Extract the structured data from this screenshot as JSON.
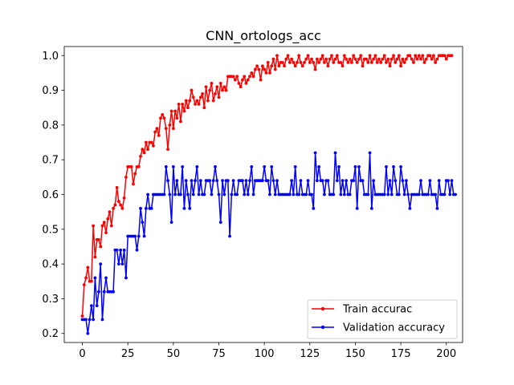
{
  "chart_data": {
    "type": "line",
    "title": "CNN_ortologs_acc",
    "xlabel": "",
    "ylabel": "",
    "xlim": [
      -9.95,
      208.95
    ],
    "ylim": [
      0.174,
      1.026
    ],
    "x_ticks": [
      0,
      25,
      50,
      75,
      100,
      125,
      150,
      175,
      200
    ],
    "y_ticks": [
      0.2,
      0.3,
      0.4,
      0.5,
      0.6,
      0.7,
      0.8,
      0.9,
      1.0
    ],
    "x_tick_labels": [
      "0",
      "25",
      "50",
      "75",
      "100",
      "125",
      "150",
      "175",
      "200"
    ],
    "y_tick_labels": [
      "0.2",
      "0.3",
      "0.4",
      "0.5",
      "0.6",
      "0.7",
      "0.8",
      "0.9",
      "1.0"
    ],
    "grid": false,
    "legend_position": "lower-right",
    "series": [
      {
        "name": "Train accurac",
        "color": "#ff0000",
        "marker": "dot",
        "values": [
          0.25,
          0.34,
          0.36,
          0.39,
          0.35,
          0.35,
          0.51,
          0.42,
          0.47,
          0.47,
          0.45,
          0.51,
          0.52,
          0.49,
          0.53,
          0.55,
          0.51,
          0.56,
          0.57,
          0.62,
          0.58,
          0.57,
          0.56,
          0.59,
          0.65,
          0.68,
          0.68,
          0.68,
          0.63,
          0.66,
          0.68,
          0.68,
          0.71,
          0.73,
          0.72,
          0.75,
          0.73,
          0.75,
          0.75,
          0.74,
          0.78,
          0.79,
          0.77,
          0.82,
          0.83,
          0.82,
          0.79,
          0.73,
          0.8,
          0.84,
          0.79,
          0.84,
          0.82,
          0.86,
          0.81,
          0.86,
          0.84,
          0.87,
          0.85,
          0.87,
          0.9,
          0.88,
          0.86,
          0.87,
          0.86,
          0.88,
          0.89,
          0.85,
          0.91,
          0.87,
          0.9,
          0.92,
          0.87,
          0.89,
          0.91,
          0.88,
          0.92,
          0.9,
          0.91,
          0.9,
          0.94,
          0.94,
          0.94,
          0.94,
          0.93,
          0.94,
          0.92,
          0.91,
          0.93,
          0.94,
          0.92,
          0.93,
          0.94,
          0.95,
          0.94,
          0.96,
          0.97,
          0.96,
          0.93,
          0.97,
          0.96,
          0.95,
          0.98,
          0.95,
          0.97,
          0.99,
          0.96,
          1.0,
          0.97,
          0.98,
          0.98,
          0.97,
          0.99,
          1.0,
          0.98,
          0.99,
          0.98,
          0.97,
          0.98,
          1.0,
          0.98,
          0.97,
          0.98,
          0.99,
          1.0,
          0.98,
          0.99,
          0.98,
          0.96,
          0.99,
          0.98,
          0.99,
          1.0,
          0.98,
          0.99,
          0.97,
          0.99,
          1.0,
          0.98,
          0.99,
          1.0,
          0.98,
          0.98,
          0.97,
          1.0,
          0.99,
          0.98,
          0.99,
          0.98,
          1.0,
          0.99,
          0.98,
          0.99,
          1.0,
          0.97,
          0.99,
          0.99,
          0.98,
          1.0,
          0.98,
          0.99,
          1.0,
          0.98,
          0.99,
          0.98,
          0.99,
          1.0,
          0.98,
          0.99,
          0.97,
          0.99,
          1.0,
          0.98,
          0.99,
          1.0,
          0.97,
          0.99,
          0.98,
          0.99,
          1.0,
          1.0,
          0.99,
          0.98,
          1.0,
          0.99,
          1.0,
          0.99,
          1.0,
          0.98,
          0.99,
          1.0,
          1.0,
          0.99,
          1.0,
          0.98,
          0.99,
          1.0,
          1.0,
          1.0,
          1.0,
          0.99,
          1.0,
          1.0,
          1.0
        ]
      },
      {
        "name": "Validation accuracy",
        "color": "#0000ff",
        "marker": "dot",
        "values": [
          0.24,
          0.24,
          0.24,
          0.2,
          0.24,
          0.28,
          0.24,
          0.36,
          0.28,
          0.32,
          0.4,
          0.24,
          0.32,
          0.36,
          0.32,
          0.32,
          0.32,
          0.32,
          0.44,
          0.44,
          0.4,
          0.44,
          0.4,
          0.44,
          0.36,
          0.48,
          0.48,
          0.48,
          0.48,
          0.48,
          0.44,
          0.48,
          0.56,
          0.52,
          0.48,
          0.56,
          0.6,
          0.56,
          0.56,
          0.6,
          0.6,
          0.6,
          0.6,
          0.6,
          0.6,
          0.6,
          0.68,
          0.64,
          0.6,
          0.52,
          0.68,
          0.6,
          0.64,
          0.6,
          0.6,
          0.68,
          0.56,
          0.64,
          0.6,
          0.56,
          0.64,
          0.6,
          0.64,
          0.68,
          0.6,
          0.64,
          0.6,
          0.6,
          0.64,
          0.64,
          0.64,
          0.6,
          0.64,
          0.68,
          0.64,
          0.6,
          0.52,
          0.64,
          0.6,
          0.64,
          0.64,
          0.48,
          0.6,
          0.64,
          0.6,
          0.6,
          0.64,
          0.64,
          0.64,
          0.6,
          0.64,
          0.6,
          0.64,
          0.68,
          0.6,
          0.64,
          0.64,
          0.64,
          0.64,
          0.64,
          0.68,
          0.64,
          0.64,
          0.6,
          0.68,
          0.64,
          0.6,
          0.64,
          0.6,
          0.6,
          0.6,
          0.6,
          0.6,
          0.6,
          0.6,
          0.64,
          0.6,
          0.68,
          0.6,
          0.6,
          0.64,
          0.6,
          0.6,
          0.6,
          0.64,
          0.6,
          0.6,
          0.56,
          0.72,
          0.64,
          0.68,
          0.64,
          0.64,
          0.6,
          0.64,
          0.64,
          0.6,
          0.6,
          0.6,
          0.72,
          0.64,
          0.68,
          0.6,
          0.64,
          0.6,
          0.64,
          0.6,
          0.6,
          0.64,
          0.64,
          0.68,
          0.56,
          0.68,
          0.64,
          0.64,
          0.6,
          0.6,
          0.6,
          0.72,
          0.56,
          0.64,
          0.6,
          0.6,
          0.6,
          0.6,
          0.6,
          0.6,
          0.68,
          0.6,
          0.64,
          0.6,
          0.68,
          0.64,
          0.6,
          0.6,
          0.68,
          0.64,
          0.6,
          0.64,
          0.6,
          0.56,
          0.6,
          0.6,
          0.6,
          0.6,
          0.6,
          0.64,
          0.6,
          0.6,
          0.6,
          0.6,
          0.64,
          0.6,
          0.6,
          0.6,
          0.56,
          0.64,
          0.6,
          0.6,
          0.6,
          0.64,
          0.64,
          0.6,
          0.64,
          0.6,
          0.6
        ]
      }
    ]
  }
}
